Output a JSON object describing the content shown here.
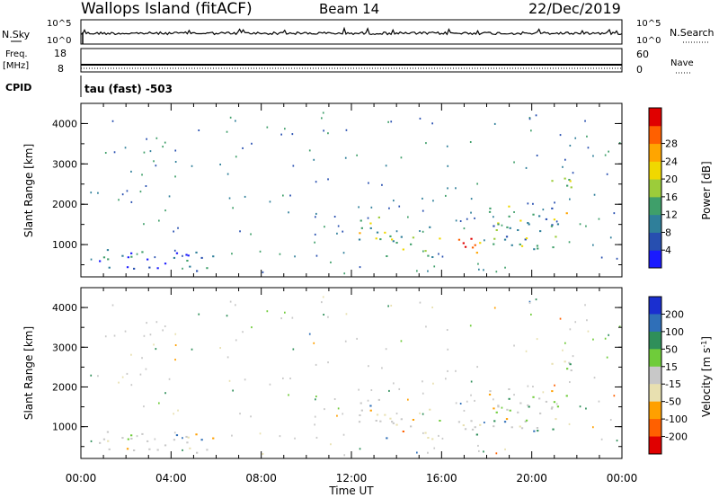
{
  "header": {
    "site": "Wallops Island (fitACF)",
    "beam": "Beam 14",
    "date": "22/Dec/2019"
  },
  "strip_labels": {
    "nsky": "N.Sky",
    "nsky_ticks": [
      "10^5",
      "10^0"
    ],
    "nsearch": "N.Search",
    "freq": "Freq.",
    "freq_unit": "[MHz]",
    "freq_ticks": [
      "18",
      "8"
    ],
    "nave": "Nave",
    "nave_ticks": [
      "60",
      "0"
    ],
    "cpid": "CPID",
    "cpid_value": "tau (fast) -503"
  },
  "colors": {
    "power_scale": [
      "#1a1aff",
      "#274fb0",
      "#2f7f9a",
      "#3f9f6a",
      "#9ccc3a",
      "#f0d800",
      "#ffa500",
      "#ff6000",
      "#e00000"
    ],
    "velocity_scale": [
      "#1a2fd0",
      "#2f6fb8",
      "#2f8f5a",
      "#6fcc3a",
      "#c8c8c8",
      "#e8e0b0",
      "#ffa000",
      "#ff6000",
      "#e00000"
    ]
  },
  "chart_data": [
    {
      "type": "heatmap",
      "title": "",
      "xlabel": "Time UT",
      "ylabel": "Slant Range [km]",
      "x_ticks": [
        "00:00",
        "04:00",
        "08:00",
        "12:00",
        "16:00",
        "20:00",
        "00:00"
      ],
      "y_ticks": [
        1000,
        2000,
        3000,
        4000
      ],
      "ylim": [
        200,
        4500
      ],
      "colorbar_label": "Power [dB]",
      "colorbar_ticks": [
        4,
        8,
        12,
        16,
        20,
        24,
        28
      ],
      "zlim": [
        0,
        32
      ],
      "data_regions_hours_km_db": [
        {
          "t0": 0.2,
          "t1": 6.0,
          "r0": 300,
          "r1": 900,
          "value": 6
        },
        {
          "t0": 5.1,
          "t1": 5.4,
          "r0": 700,
          "r1": 900,
          "value": 20
        },
        {
          "t0": 12.3,
          "t1": 13.5,
          "r0": 1100,
          "r1": 1800,
          "value": 16
        },
        {
          "t0": 13.0,
          "t1": 16.0,
          "r0": 700,
          "r1": 1500,
          "value": 14
        },
        {
          "t0": 16.0,
          "t1": 18.3,
          "r0": 800,
          "r1": 1200,
          "value": 26
        },
        {
          "t0": 18.0,
          "t1": 21.3,
          "r0": 900,
          "r1": 2000,
          "value": 12
        },
        {
          "t0": 20.8,
          "t1": 21.8,
          "r0": 1400,
          "r1": 2700,
          "value": 18
        }
      ]
    },
    {
      "type": "heatmap",
      "title": "",
      "xlabel": "Time UT",
      "ylabel": "Slant Range [km]",
      "x_ticks": [
        "00:00",
        "04:00",
        "08:00",
        "12:00",
        "16:00",
        "20:00",
        "00:00"
      ],
      "y_ticks": [
        1000,
        2000,
        3000,
        4000
      ],
      "ylim": [
        200,
        4500
      ],
      "colorbar_label": "Velocity [m s^-1]",
      "colorbar_ticks": [
        200,
        100,
        50,
        15,
        -15,
        -50,
        -100,
        -200
      ],
      "zlim": [
        -250,
        250
      ]
    }
  ]
}
